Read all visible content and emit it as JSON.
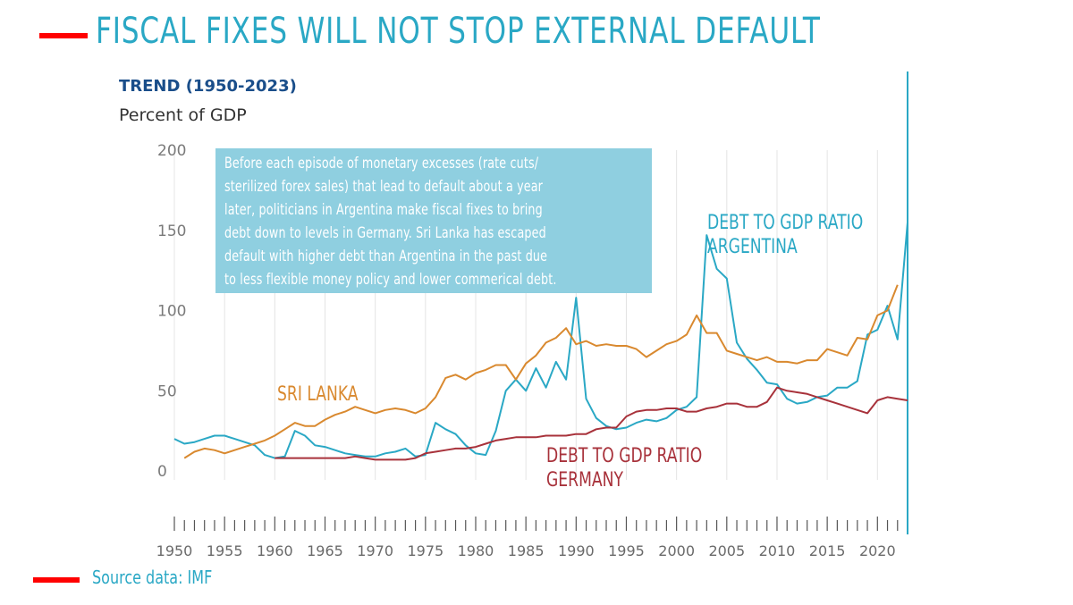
{
  "slide": {
    "title": "FISCAL FIXES WILL NOT STOP EXTERNAL DEFAULT",
    "source": "Source data: IMF",
    "callout_lines": [
      "Before each episode of monetary excesses (rate cuts/",
      "sterilized forex sales) that lead to default about a year",
      "later, politicians in Argentina make fiscal fixes to bring",
      "debt down to levels in Germany. Sri Lanka has escaped",
      "default with higher debt than Argentina in the past due",
      "to less flexible money policy and lower commerical debt."
    ],
    "colors": {
      "accent_bar": "#ff0000",
      "title": "#2aa8c5",
      "callout_bg": "#8fcfe0"
    }
  },
  "chart_data": {
    "type": "line",
    "title": "TREND (1950-2023)",
    "ylabel": "Percent of GDP",
    "xlabel": "",
    "xlim": [
      1950,
      2023
    ],
    "ylim": [
      0,
      200
    ],
    "yticks": [
      0,
      50,
      100,
      150,
      200
    ],
    "xticks": [
      1950,
      1955,
      1960,
      1965,
      1970,
      1975,
      1980,
      1985,
      1990,
      1995,
      2000,
      2005,
      2010,
      2015,
      2020
    ],
    "grid": "vertical",
    "series": [
      {
        "name": "DEBT TO GDP RATIO ARGENTINA",
        "color": "#2aa8c5",
        "x": [
          1950,
          1951,
          1952,
          1953,
          1954,
          1955,
          1956,
          1957,
          1958,
          1959,
          1960,
          1961,
          1962,
          1963,
          1964,
          1965,
          1966,
          1967,
          1968,
          1969,
          1970,
          1971,
          1972,
          1973,
          1974,
          1975,
          1976,
          1977,
          1978,
          1979,
          1980,
          1981,
          1982,
          1983,
          1984,
          1985,
          1986,
          1987,
          1988,
          1989,
          1990,
          1991,
          1992,
          1993,
          1994,
          1995,
          1996,
          1997,
          1998,
          1999,
          2000,
          2001,
          2002,
          2003,
          2004,
          2005,
          2006,
          2007,
          2008,
          2009,
          2010,
          2011,
          2012,
          2013,
          2014,
          2015,
          2016,
          2017,
          2018,
          2019,
          2020,
          2021,
          2022,
          2023
        ],
        "values": [
          20,
          17,
          18,
          20,
          22,
          22,
          20,
          18,
          16,
          10,
          8,
          9,
          25,
          22,
          16,
          15,
          13,
          11,
          10,
          9,
          9,
          11,
          12,
          14,
          9,
          10,
          30,
          26,
          23,
          16,
          11,
          10,
          25,
          50,
          57,
          50,
          64,
          52,
          68,
          57,
          108,
          45,
          33,
          28,
          26,
          27,
          30,
          32,
          31,
          33,
          38,
          40,
          46,
          147,
          126,
          120,
          80,
          70,
          63,
          55,
          54,
          45,
          42,
          43,
          46,
          47,
          52,
          52,
          56,
          85,
          88,
          103,
          82,
          155
        ]
      },
      {
        "name": "SRI LANKA",
        "color": "#d9892f",
        "x": [
          1951,
          1952,
          1953,
          1954,
          1955,
          1956,
          1957,
          1958,
          1959,
          1960,
          1961,
          1962,
          1963,
          1964,
          1965,
          1966,
          1967,
          1968,
          1969,
          1970,
          1971,
          1972,
          1973,
          1974,
          1975,
          1976,
          1977,
          1978,
          1979,
          1980,
          1981,
          1982,
          1983,
          1984,
          1985,
          1986,
          1987,
          1988,
          1989,
          1990,
          1991,
          1992,
          1993,
          1994,
          1995,
          1996,
          1997,
          1998,
          1999,
          2000,
          2001,
          2002,
          2003,
          2004,
          2005,
          2006,
          2007,
          2008,
          2009,
          2010,
          2011,
          2012,
          2013,
          2014,
          2015,
          2016,
          2017,
          2018,
          2019,
          2020,
          2021,
          2022
        ],
        "values": [
          8,
          12,
          14,
          13,
          11,
          13,
          15,
          17,
          19,
          22,
          26,
          30,
          28,
          28,
          32,
          35,
          37,
          40,
          38,
          36,
          38,
          39,
          38,
          36,
          39,
          46,
          58,
          60,
          57,
          61,
          63,
          66,
          66,
          57,
          67,
          72,
          80,
          83,
          89,
          79,
          81,
          78,
          79,
          78,
          78,
          76,
          71,
          75,
          79,
          81,
          85,
          97,
          86,
          86,
          75,
          73,
          71,
          69,
          71,
          68,
          68,
          67,
          69,
          69,
          76,
          74,
          72,
          83,
          82,
          97,
          100,
          116
        ]
      },
      {
        "name": "DEBT TO GDP RATIO GERMANY",
        "color": "#a8323b",
        "x": [
          1960,
          1961,
          1962,
          1963,
          1964,
          1965,
          1966,
          1967,
          1968,
          1969,
          1970,
          1971,
          1972,
          1973,
          1974,
          1975,
          1976,
          1977,
          1978,
          1979,
          1980,
          1981,
          1982,
          1983,
          1984,
          1985,
          1986,
          1987,
          1988,
          1989,
          1990,
          1991,
          1992,
          1993,
          1994,
          1995,
          1996,
          1997,
          1998,
          1999,
          2000,
          2001,
          2002,
          2003,
          2004,
          2005,
          2006,
          2007,
          2008,
          2009,
          2010,
          2011,
          2012,
          2013,
          2014,
          2015,
          2016,
          2017,
          2018,
          2019,
          2020,
          2021,
          2022,
          2023
        ],
        "values": [
          8,
          8,
          8,
          8,
          8,
          8,
          8,
          8,
          9,
          8,
          7,
          7,
          7,
          7,
          8,
          11,
          12,
          13,
          14,
          14,
          15,
          17,
          19,
          20,
          21,
          21,
          21,
          22,
          22,
          22,
          23,
          23,
          26,
          27,
          27,
          34,
          37,
          38,
          38,
          39,
          39,
          37,
          37,
          39,
          40,
          42,
          42,
          40,
          40,
          43,
          52,
          50,
          49,
          48,
          46,
          44,
          42,
          40,
          38,
          36,
          44,
          46,
          45,
          44
        ]
      }
    ]
  }
}
